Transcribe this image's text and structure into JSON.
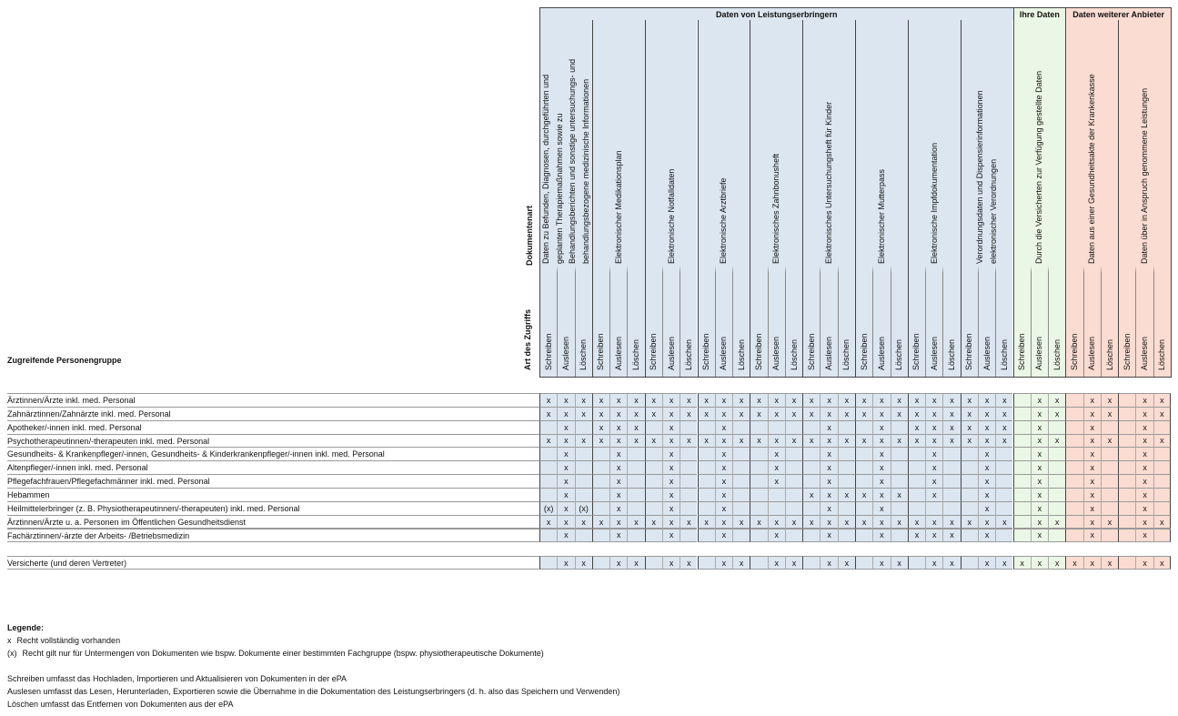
{
  "header": {
    "group_label": "Zugreifende Personengruppe",
    "doc_type_label": "Dokumentenart",
    "access_label": "Art des Zugriffs"
  },
  "access_types": [
    "Schreiben",
    "Auslesen",
    "Löschen"
  ],
  "groups": [
    {
      "title": "Daten von Leistungserbringern",
      "color": "#dce6f1",
      "documents": [
        {
          "lines": [
            "Daten zu Befunden, Diagnosen, durchgeführten und",
            "geplanten Therapiemaßnahmen sowie zu",
            "Behandlungsberichten und sonstige untersuchungs- und",
            "behandlungsbezogene medizinische Informationen"
          ]
        },
        {
          "lines": [
            "Elektronischer Medikationsplan"
          ]
        },
        {
          "lines": [
            "Elektronische Notfalldaten"
          ]
        },
        {
          "lines": [
            "Elektronische Arztbriefe"
          ]
        },
        {
          "lines": [
            "Elektronisches Zahnbonusheft"
          ]
        },
        {
          "lines": [
            "Elektronisches Untersuchungsheft für Kinder"
          ]
        },
        {
          "lines": [
            "Elektronischer Mutterpass"
          ]
        },
        {
          "lines": [
            "Elektronische Impfdokumentation"
          ]
        },
        {
          "lines": [
            "Verordnungsdaten und Dispensierinformationen",
            "elektronischer Verordnungen"
          ]
        }
      ]
    },
    {
      "title": "Ihre Daten",
      "color": "#ebf7e6",
      "documents": [
        {
          "lines": [
            "Durch die Versicherten zur Verfügung gestellte Daten"
          ]
        }
      ]
    },
    {
      "title": "Daten weiterer Anbieter",
      "color": "#fbdcd2",
      "documents": [
        {
          "lines": [
            "Daten aus einer Gesundheitsakte der Krankenkasse"
          ]
        },
        {
          "lines": [
            "Daten über in Anspruch genommene Leistungen"
          ]
        }
      ]
    }
  ],
  "rows": [
    {
      "label": "Ärztinnen/Ärzte inkl. med. Personal",
      "cells": [
        "x",
        "x",
        "x",
        "x",
        "x",
        "x",
        "x",
        "x",
        "x",
        "x",
        "x",
        "x",
        "x",
        "x",
        "x",
        "x",
        "x",
        "x",
        "x",
        "x",
        "x",
        "x",
        "x",
        "x",
        "x",
        "x",
        "x",
        null,
        "x",
        "x",
        null,
        "x",
        "x",
        null,
        "x",
        "x"
      ]
    },
    {
      "label": "Zahnärztinnen/Zahnärzte inkl. med. Personal",
      "cells": [
        "x",
        "x",
        "x",
        "x",
        "x",
        "x",
        "x",
        "x",
        "x",
        "x",
        "x",
        "x",
        "x",
        "x",
        "x",
        "x",
        "x",
        "x",
        "x",
        "x",
        "x",
        "x",
        "x",
        "x",
        "x",
        "x",
        "x",
        null,
        "x",
        "x",
        null,
        "x",
        "x",
        null,
        "x",
        "x"
      ]
    },
    {
      "label": "Apotheker/-innen inkl. med. Personal",
      "cells": [
        null,
        "x",
        null,
        "x",
        "x",
        "x",
        null,
        "x",
        null,
        null,
        "x",
        null,
        null,
        null,
        null,
        null,
        "x",
        null,
        null,
        "x",
        null,
        "x",
        "x",
        "x",
        "x",
        "x",
        "x",
        null,
        "x",
        null,
        null,
        "x",
        null,
        null,
        "x",
        null
      ]
    },
    {
      "label": "Psychotherapeutinnen/-therapeuten inkl. med. Personal",
      "cells": [
        "x",
        "x",
        "x",
        "x",
        "x",
        "x",
        "x",
        "x",
        "x",
        "x",
        "x",
        "x",
        "x",
        "x",
        "x",
        "x",
        "x",
        "x",
        "x",
        "x",
        "x",
        "x",
        "x",
        "x",
        "x",
        "x",
        "x",
        null,
        "x",
        "x",
        null,
        "x",
        "x",
        null,
        "x",
        "x"
      ]
    },
    {
      "label": "Gesundheits- & Krankenpfleger/-innen, Gesundheits- & Kinderkrankenpfleger/-innen inkl. med. Personal",
      "cells": [
        null,
        "x",
        null,
        null,
        "x",
        null,
        null,
        "x",
        null,
        null,
        "x",
        null,
        null,
        "x",
        null,
        null,
        "x",
        null,
        null,
        "x",
        null,
        null,
        "x",
        null,
        null,
        "x",
        null,
        null,
        "x",
        null,
        null,
        "x",
        null,
        null,
        "x",
        null
      ]
    },
    {
      "label": "Altenpfleger/-innen inkl. med. Personal",
      "cells": [
        null,
        "x",
        null,
        null,
        "x",
        null,
        null,
        "x",
        null,
        null,
        "x",
        null,
        null,
        "x",
        null,
        null,
        "x",
        null,
        null,
        "x",
        null,
        null,
        "x",
        null,
        null,
        "x",
        null,
        null,
        "x",
        null,
        null,
        "x",
        null,
        null,
        "x",
        null
      ]
    },
    {
      "label": "Pflegefachfrauen/Pflegefachmänner inkl. med. Personal",
      "cells": [
        null,
        "x",
        null,
        null,
        "x",
        null,
        null,
        "x",
        null,
        null,
        "x",
        null,
        null,
        "x",
        null,
        null,
        "x",
        null,
        null,
        "x",
        null,
        null,
        "x",
        null,
        null,
        "x",
        null,
        null,
        "x",
        null,
        null,
        "x",
        null,
        null,
        "x",
        null
      ]
    },
    {
      "label": "Hebammen",
      "cells": [
        null,
        "x",
        null,
        null,
        "x",
        null,
        null,
        "x",
        null,
        null,
        "x",
        null,
        null,
        null,
        null,
        "x",
        "x",
        "x",
        "x",
        "x",
        "x",
        null,
        "x",
        null,
        null,
        "x",
        null,
        null,
        "x",
        null,
        null,
        "x",
        null,
        null,
        "x",
        null
      ]
    },
    {
      "label": "Heilmittelerbringer (z. B. Physiotherapeutinnen/-therapeuten) inkl. med. Personal",
      "cells": [
        "(x)",
        "x",
        "(x)",
        null,
        "x",
        null,
        null,
        "x",
        null,
        null,
        "x",
        null,
        null,
        null,
        null,
        null,
        "x",
        null,
        null,
        "x",
        null,
        null,
        null,
        null,
        null,
        "x",
        null,
        null,
        "x",
        null,
        null,
        "x",
        null,
        null,
        "x",
        null
      ]
    },
    {
      "label": "Ärztinnen/Ärzte u. a. Personen im Öffentlichen Gesundheitsdienst",
      "cells": [
        "x",
        "x",
        "x",
        "x",
        "x",
        "x",
        "x",
        "x",
        "x",
        "x",
        "x",
        "x",
        "x",
        "x",
        "x",
        "x",
        "x",
        "x",
        "x",
        "x",
        "x",
        "x",
        "x",
        "x",
        "x",
        "x",
        "x",
        null,
        "x",
        "x",
        null,
        "x",
        "x",
        null,
        "x",
        "x"
      ]
    },
    {
      "label": "Fachärztinnen/-ärzte der Arbeits- /Betriebsmedizin",
      "cells": [
        null,
        "x",
        null,
        null,
        "x",
        null,
        null,
        "x",
        null,
        null,
        "x",
        null,
        null,
        "x",
        null,
        null,
        "x",
        null,
        null,
        "x",
        null,
        "x",
        "x",
        "x",
        null,
        "x",
        null,
        null,
        "x",
        null,
        null,
        "x",
        null,
        null,
        "x",
        null
      ]
    }
  ],
  "insured_row": {
    "label": "Versicherte (und deren Vertreter)",
    "cells": [
      null,
      "x",
      "x",
      null,
      "x",
      "x",
      null,
      "x",
      "x",
      null,
      "x",
      "x",
      null,
      "x",
      "x",
      null,
      "x",
      "x",
      null,
      "x",
      "x",
      null,
      "x",
      "x",
      null,
      "x",
      "x",
      "x",
      "x",
      "x",
      "x",
      "x",
      "x",
      null,
      "x",
      "x"
    ]
  },
  "legend": {
    "title": "Legende:",
    "entries": [
      {
        "symbol": "x",
        "text": "Recht vollständig vorhanden"
      },
      {
        "symbol": "(x)",
        "text": "Recht gilt nur für Untermengen von Dokumenten wie bspw. Dokumente einer bestimmten Fachgruppe (bspw. physiotherapeutische Dokumente)"
      }
    ],
    "definitions": [
      "Schreiben umfasst das Hochladen, Importieren und Aktualisieren von Dokumenten in der ePA",
      "Auslesen umfasst das Lesen, Herunterladen, Exportieren sowie die Übernahme in die Dokumentation des Leistungserbringers (d. h. also das Speichern und Verwenden)",
      "Löschen umfasst das Entfernen von Dokumenten aus der ePA"
    ]
  }
}
